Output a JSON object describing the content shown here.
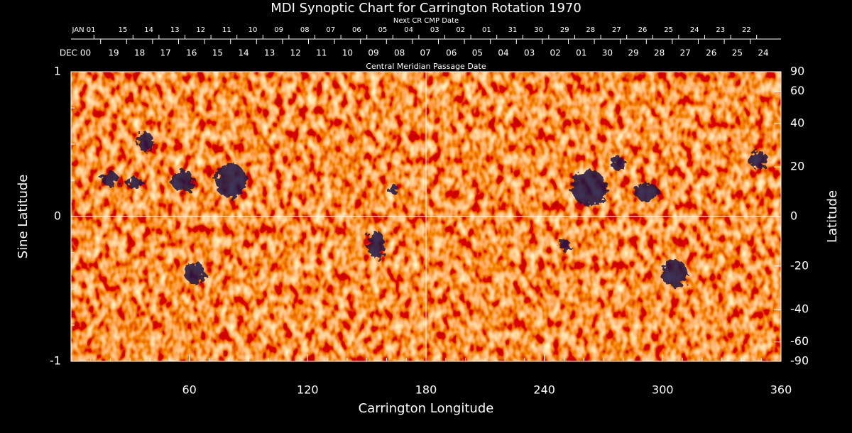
{
  "chart_data": {
    "type": "image",
    "title": "MDI Synoptic Chart for Carrington Rotation 1970",
    "top_axis_label": "Central Meridian Passage Date",
    "top_axis_dates": [
      "DEC 00",
      "19",
      "18",
      "17",
      "16",
      "15",
      "14",
      "13",
      "12",
      "11",
      "10",
      "09",
      "08",
      "07",
      "06",
      "05",
      "04",
      "03",
      "02",
      "01",
      "30",
      "29",
      "28",
      "27",
      "26",
      "25",
      "24"
    ],
    "next_axis_label": "Next CR CMP Date",
    "next_axis_color": "#ff4a20",
    "next_axis_dates": [
      "JAN 01",
      "15",
      "14",
      "13",
      "12",
      "11",
      "10",
      "09",
      "08",
      "07",
      "06",
      "05",
      "04",
      "03",
      "02",
      "01",
      "31",
      "30",
      "29",
      "28",
      "27",
      "26",
      "25",
      "24",
      "23",
      "22"
    ],
    "x_label": "Carrington Longitude",
    "y_label": "Sine Latitude",
    "y2_label": "Latitude",
    "xlim": [
      0,
      360
    ],
    "xticks": [
      60,
      120,
      180,
      240,
      300,
      360
    ],
    "ylim": [
      -1,
      1
    ],
    "yticks": [
      -1,
      0,
      1
    ],
    "y2lim": [
      -90,
      90
    ],
    "y2_scale": "sine",
    "y2ticks": [
      90,
      60,
      40,
      20,
      0,
      -20,
      -40,
      -60,
      -90
    ],
    "guides": {
      "x": 180,
      "y": 0
    }
  }
}
